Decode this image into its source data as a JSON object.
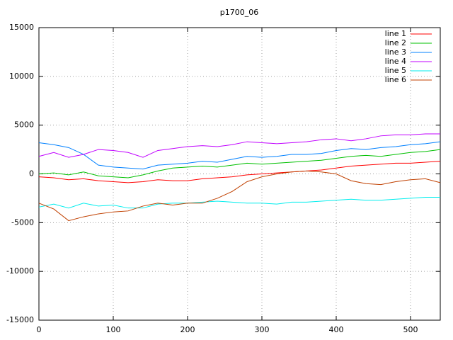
{
  "chart_data": {
    "type": "line",
    "title": "p1700_06",
    "x": [
      0,
      20,
      40,
      60,
      80,
      100,
      120,
      140,
      160,
      180,
      200,
      220,
      240,
      260,
      280,
      300,
      320,
      340,
      360,
      380,
      400,
      420,
      440,
      460,
      480,
      500,
      520,
      540
    ],
    "xlim": [
      0,
      540
    ],
    "ylim": [
      -15000,
      15000
    ],
    "xticks": [
      0,
      100,
      200,
      300,
      400,
      500
    ],
    "yticks": [
      -15000,
      -10000,
      -5000,
      0,
      5000,
      10000,
      15000
    ],
    "grid": true,
    "legend": "top-right",
    "series": [
      {
        "name": "line 1",
        "color": "#ff0000",
        "values": [
          -300,
          -400,
          -600,
          -500,
          -700,
          -800,
          -900,
          -800,
          -600,
          -700,
          -700,
          -500,
          -400,
          -300,
          -100,
          0,
          100,
          200,
          300,
          400,
          600,
          800,
          900,
          1000,
          1100,
          1100,
          1200,
          1300
        ]
      },
      {
        "name": "line 2",
        "color": "#00c000",
        "values": [
          0,
          100,
          -100,
          200,
          -200,
          -300,
          -400,
          -100,
          300,
          600,
          700,
          800,
          700,
          900,
          1100,
          1000,
          1100,
          1200,
          1300,
          1400,
          1600,
          1800,
          1900,
          1800,
          2000,
          2200,
          2300,
          2500
        ]
      },
      {
        "name": "line 3",
        "color": "#0080ff",
        "values": [
          3200,
          3000,
          2700,
          2000,
          900,
          700,
          600,
          500,
          900,
          1000,
          1100,
          1300,
          1200,
          1500,
          1800,
          1700,
          1800,
          2000,
          2000,
          2100,
          2400,
          2600,
          2500,
          2700,
          2800,
          3000,
          3100,
          3300
        ]
      },
      {
        "name": "line 4",
        "color": "#c000ff",
        "values": [
          1800,
          2200,
          1700,
          2000,
          2500,
          2400,
          2200,
          1700,
          2400,
          2600,
          2800,
          2900,
          2800,
          3000,
          3300,
          3200,
          3100,
          3200,
          3300,
          3500,
          3600,
          3400,
          3600,
          3900,
          4000,
          4000,
          4100,
          4100
        ]
      },
      {
        "name": "line 5",
        "color": "#00eeee",
        "values": [
          -3400,
          -3100,
          -3500,
          -3000,
          -3300,
          -3200,
          -3500,
          -3500,
          -3100,
          -3000,
          -3000,
          -2900,
          -2800,
          -2900,
          -3000,
          -3000,
          -3100,
          -2900,
          -2900,
          -2800,
          -2700,
          -2600,
          -2700,
          -2700,
          -2600,
          -2500,
          -2400,
          -2400
        ]
      },
      {
        "name": "line 6",
        "color": "#c04000",
        "values": [
          -3000,
          -3600,
          -4800,
          -4400,
          -4100,
          -3900,
          -3800,
          -3300,
          -3000,
          -3200,
          -3000,
          -3000,
          -2500,
          -1800,
          -800,
          -300,
          0,
          200,
          300,
          200,
          0,
          -700,
          -1000,
          -1100,
          -800,
          -600,
          -500,
          -900
        ]
      }
    ]
  }
}
